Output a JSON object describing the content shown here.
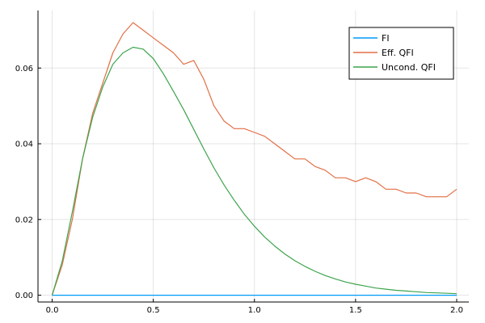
{
  "chart_data": {
    "type": "line",
    "title": "",
    "xlabel": "",
    "ylabel": "",
    "xlim": [
      -0.07,
      2.06
    ],
    "ylim": [
      -0.0018,
      0.0752
    ],
    "grid": true,
    "legend_position": "top-right",
    "xticks": [
      0.0,
      0.5,
      1.0,
      1.5,
      2.0
    ],
    "xtick_labels": [
      "0.0",
      "0.5",
      "1.0",
      "1.5",
      "2.0"
    ],
    "yticks": [
      0.0,
      0.02,
      0.04,
      0.06
    ],
    "ytick_labels": [
      "0.00",
      "0.02",
      "0.04",
      "0.06"
    ],
    "series": [
      {
        "name": "FI",
        "color": "#009af9",
        "x": [
          0.0,
          0.5,
          1.0,
          1.5,
          2.0
        ],
        "y": [
          0.0,
          0.0,
          0.0,
          0.0,
          0.0
        ]
      },
      {
        "name": "Eff. QFI",
        "color": "#e26f46",
        "x": [
          0.0,
          0.05,
          0.1,
          0.15,
          0.2,
          0.25,
          0.3,
          0.35,
          0.4,
          0.45,
          0.5,
          0.55,
          0.6,
          0.65,
          0.7,
          0.75,
          0.8,
          0.85,
          0.9,
          0.95,
          1.0,
          1.05,
          1.1,
          1.15,
          1.2,
          1.25,
          1.3,
          1.35,
          1.4,
          1.45,
          1.5,
          1.55,
          1.6,
          1.65,
          1.7,
          1.75,
          1.8,
          1.85,
          1.9,
          1.95,
          2.0
        ],
        "y": [
          0.0,
          0.008,
          0.02,
          0.036,
          0.048,
          0.056,
          0.064,
          0.069,
          0.072,
          0.07,
          0.068,
          0.066,
          0.064,
          0.061,
          0.062,
          0.057,
          0.05,
          0.046,
          0.044,
          0.044,
          0.043,
          0.042,
          0.04,
          0.038,
          0.036,
          0.036,
          0.034,
          0.033,
          0.031,
          0.031,
          0.03,
          0.031,
          0.03,
          0.028,
          0.028,
          0.027,
          0.027,
          0.026,
          0.026,
          0.026,
          0.028
        ]
      },
      {
        "name": "Uncond. QFI",
        "color": "#3da44d",
        "x": [
          0.0,
          0.05,
          0.1,
          0.15,
          0.2,
          0.25,
          0.3,
          0.35,
          0.4,
          0.45,
          0.5,
          0.55,
          0.6,
          0.65,
          0.7,
          0.75,
          0.8,
          0.85,
          0.9,
          0.95,
          1.0,
          1.05,
          1.1,
          1.15,
          1.2,
          1.25,
          1.3,
          1.35,
          1.4,
          1.45,
          1.5,
          1.55,
          1.6,
          1.65,
          1.7,
          1.75,
          1.8,
          1.85,
          1.9,
          1.95,
          2.0
        ],
        "y": [
          0.0,
          0.009,
          0.022,
          0.036,
          0.047,
          0.055,
          0.061,
          0.064,
          0.0655,
          0.065,
          0.0625,
          0.0585,
          0.0538,
          0.049,
          0.0438,
          0.0386,
          0.0336,
          0.0291,
          0.0251,
          0.0214,
          0.0182,
          0.0154,
          0.013,
          0.0109,
          0.0091,
          0.0076,
          0.0063,
          0.0052,
          0.0043,
          0.0035,
          0.0029,
          0.0024,
          0.0019,
          0.0016,
          0.0013,
          0.0011,
          0.0009,
          0.0007,
          0.0006,
          0.0005,
          0.0004
        ]
      }
    ]
  }
}
